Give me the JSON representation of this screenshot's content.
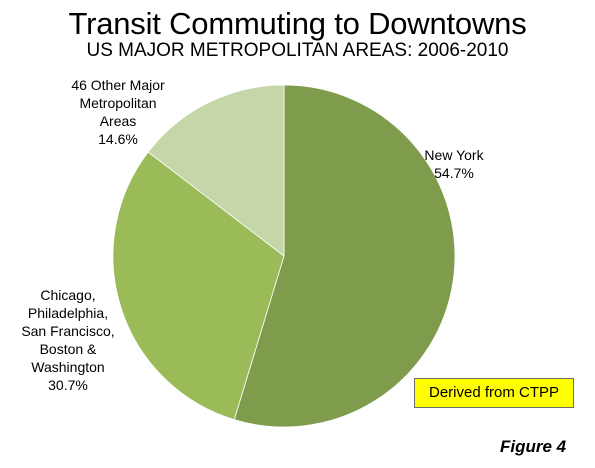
{
  "chart_data": {
    "type": "pie",
    "title": "Transit Commuting to Downtowns",
    "subtitle": "US MAJOR METROPOLITAN AREAS: 2006-2010",
    "slices": [
      {
        "label_lines": [
          "New York"
        ],
        "value": 54.7,
        "value_label": "54.7%",
        "color": "#7f9c4c"
      },
      {
        "label_lines": [
          "Chicago,",
          "Philadelphia,",
          "San Francisco,",
          "Boston &",
          "Washington"
        ],
        "value": 30.7,
        "value_label": "30.7%",
        "color": "#9bbb59"
      },
      {
        "label_lines": [
          "46 Other Major",
          "Metropolitan",
          "Areas"
        ],
        "value": 14.6,
        "value_label": "14.6%",
        "color": "#c5d6a8"
      }
    ],
    "start_angle_deg": 0,
    "direction": "clockwise",
    "legend": "none"
  },
  "annotations": {
    "source_badge": "Derived from CTPP",
    "source_badge_color": "#ffff00",
    "figure_label": "Figure 4"
  }
}
